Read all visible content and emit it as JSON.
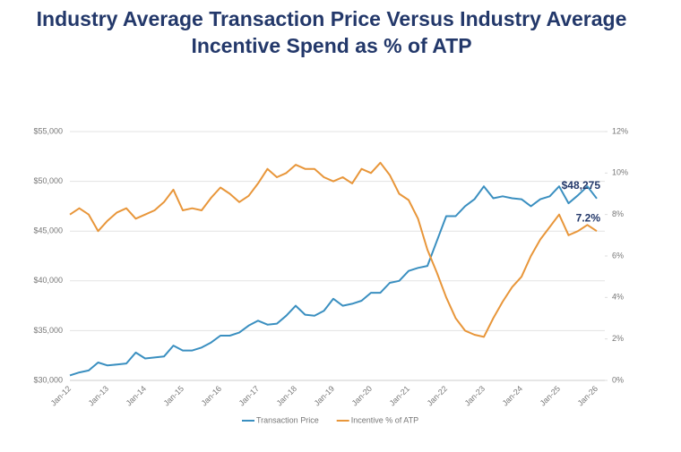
{
  "chart_data": {
    "type": "line",
    "title": "Industry Average Transaction Price Versus Industry Average Incentive Spend as % of ATP",
    "categories": [
      "Jan-12",
      null,
      null,
      null,
      "Jan-13",
      null,
      null,
      null,
      "Jan-14",
      null,
      null,
      null,
      "Jan-15",
      null,
      null,
      null,
      "Jan-16",
      null,
      null,
      null,
      "Jan-17",
      null,
      null,
      null,
      "Jan-18",
      null,
      null,
      null,
      "Jan-19",
      null,
      null,
      null,
      "Jan-20",
      null,
      null,
      null,
      "Jan-21",
      null,
      null,
      null,
      "Jan-22",
      null,
      null,
      null,
      "Jan-23",
      null,
      null,
      null,
      "Jan-24",
      null,
      null,
      null,
      "Jan-25",
      null,
      null,
      null,
      "Jan-26"
    ],
    "series": [
      {
        "name": "Transaction Price",
        "color": "#3a8fc0",
        "values": [
          30500,
          30800,
          31000,
          31800,
          31500,
          31600,
          31700,
          32800,
          32200,
          32300,
          32400,
          33500,
          33000,
          33000,
          33300,
          33800,
          34500,
          34500,
          34800,
          35500,
          36000,
          35600,
          35700,
          36500,
          37500,
          36600,
          36500,
          37000,
          38200,
          37500,
          37700,
          38000,
          38800,
          38800,
          39800,
          40000,
          41000,
          41300,
          41500,
          44000,
          46500,
          46500,
          47500,
          48200,
          49500,
          48300,
          48500,
          48300,
          48200,
          47500,
          48200,
          48500,
          49500,
          47800,
          48600,
          49500,
          48275
        ],
        "value_labels": [
          null,
          null,
          null,
          null,
          null,
          null,
          null,
          null,
          null,
          null,
          null,
          null,
          null,
          null,
          null,
          null,
          null,
          null,
          null,
          null,
          null,
          null,
          null,
          null,
          null,
          null,
          null,
          null,
          null,
          null,
          null,
          null,
          null,
          null,
          null,
          null,
          null,
          null,
          null,
          null,
          null,
          null,
          null,
          null,
          null,
          null,
          null,
          null,
          null,
          null,
          null,
          null,
          null,
          null,
          null,
          null,
          "$48,275"
        ]
      },
      {
        "name": "Incentive % of ATP",
        "color": "#e8963a",
        "axis": "y2",
        "values": [
          8.0,
          8.3,
          8.0,
          7.2,
          7.7,
          8.1,
          8.3,
          7.8,
          8.0,
          8.2,
          8.6,
          9.2,
          8.2,
          8.3,
          8.2,
          8.8,
          9.3,
          9.0,
          8.6,
          8.9,
          9.5,
          10.2,
          9.8,
          10.0,
          10.4,
          10.2,
          10.2,
          9.8,
          9.6,
          9.8,
          9.5,
          10.2,
          10.0,
          10.5,
          9.9,
          9.0,
          8.7,
          7.8,
          6.3,
          5.2,
          4.0,
          3.0,
          2.4,
          2.2,
          2.1,
          3.0,
          3.8,
          4.5,
          5.0,
          6.0,
          6.8,
          7.4,
          8.0,
          7.0,
          7.2,
          7.5,
          7.2
        ],
        "value_labels": [
          null,
          null,
          null,
          null,
          null,
          null,
          null,
          null,
          null,
          null,
          null,
          null,
          null,
          null,
          null,
          null,
          null,
          null,
          null,
          null,
          null,
          null,
          null,
          null,
          null,
          null,
          null,
          null,
          null,
          null,
          null,
          null,
          null,
          null,
          null,
          null,
          null,
          null,
          null,
          null,
          null,
          null,
          null,
          null,
          null,
          null,
          null,
          null,
          null,
          null,
          null,
          null,
          null,
          null,
          null,
          null,
          "7.2%"
        ]
      }
    ],
    "ylim": [
      30000,
      55000
    ],
    "yticks": [
      {
        "value": 30000,
        "label": "$30,000"
      },
      {
        "value": 35000,
        "label": "$35,000"
      },
      {
        "value": 40000,
        "label": "$40,000"
      },
      {
        "value": 45000,
        "label": "$45,000"
      },
      {
        "value": 50000,
        "label": "$50,000"
      },
      {
        "value": 55000,
        "label": "$55,000"
      }
    ],
    "y2lim": [
      0,
      12
    ],
    "y2ticks": [
      {
        "value": 0,
        "label": "0%"
      },
      {
        "value": 2,
        "label": "2%"
      },
      {
        "value": 4,
        "label": "4%"
      },
      {
        "value": 6,
        "label": "6%"
      },
      {
        "value": 8,
        "label": "8%"
      },
      {
        "value": 10,
        "label": "10%"
      },
      {
        "value": 12,
        "label": "12%"
      }
    ],
    "grid": true,
    "legend": "bottom"
  }
}
